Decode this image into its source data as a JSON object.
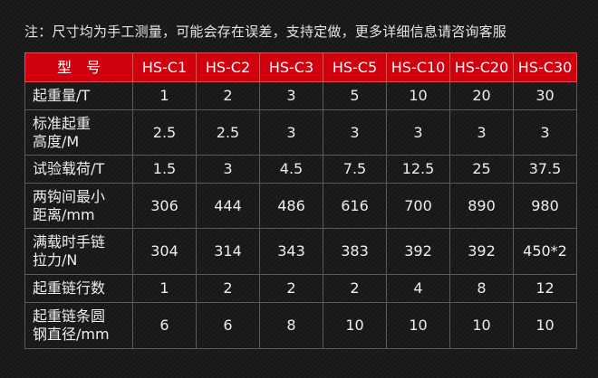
{
  "note": "注：尺寸均为手工测量，可能会存在误差，支持定做，更多详细信息请咨询客服",
  "colors": {
    "header_bg": "#d0000f",
    "background": "#1a1a1a",
    "grid": "#5a5a5a"
  },
  "table": {
    "header_label": "型　号",
    "models": [
      "HS-C1",
      "HS-C2",
      "HS-C3",
      "HS-C5",
      "HS-C10",
      "HS-C20",
      "HS-C30"
    ],
    "rows": [
      {
        "label": [
          "起重量/T"
        ],
        "values": [
          "1",
          "2",
          "3",
          "5",
          "10",
          "20",
          "30"
        ]
      },
      {
        "label": [
          "标准起重",
          "高度/M"
        ],
        "values": [
          "2.5",
          "2.5",
          "3",
          "3",
          "3",
          "3",
          "3"
        ]
      },
      {
        "label": [
          "试验载荷/T"
        ],
        "values": [
          "1.5",
          "3",
          "4.5",
          "7.5",
          "12.5",
          "25",
          "37.5"
        ]
      },
      {
        "label": [
          "两钩间最小",
          "距离/mm"
        ],
        "values": [
          "306",
          "444",
          "486",
          "616",
          "700",
          "890",
          "980"
        ]
      },
      {
        "label": [
          "满载时手链",
          "拉力/N"
        ],
        "values": [
          "304",
          "314",
          "343",
          "383",
          "392",
          "392",
          "450*2"
        ]
      },
      {
        "label": [
          "起重链行数"
        ],
        "values": [
          "1",
          "2",
          "2",
          "2",
          "4",
          "8",
          "12"
        ]
      },
      {
        "label": [
          "起重链条圆",
          "钢直径/mm"
        ],
        "values": [
          "6",
          "6",
          "8",
          "10",
          "10",
          "10",
          "10"
        ]
      }
    ]
  }
}
